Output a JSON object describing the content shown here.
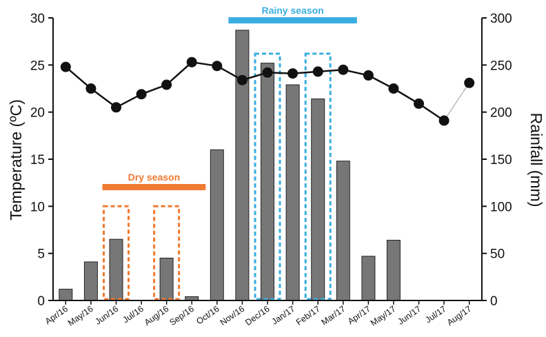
{
  "chart_data": {
    "type": "bar",
    "categories": [
      "Apr/16",
      "May/16",
      "Jun/16",
      "Jul/16",
      "Aug/16",
      "Sep/16",
      "Oct/16",
      "Nov/16",
      "Dec/16",
      "Jan/17",
      "Feb/17",
      "Mar/17",
      "Apr/17",
      "May/17",
      "Jun/17",
      "Jul/17",
      "Aug/17"
    ],
    "series": [
      {
        "type": "bar",
        "axis": "right",
        "values": [
          12,
          41,
          65,
          0,
          45,
          4,
          160,
          287,
          252,
          229,
          214,
          148,
          47,
          64,
          0,
          0,
          0
        ]
      },
      {
        "type": "line",
        "axis": "left",
        "values": [
          24.8,
          22.5,
          20.5,
          21.9,
          22.9,
          25.3,
          24.9,
          23.4,
          24.2,
          24.1,
          24.3,
          24.5,
          23.9,
          22.5,
          20.9,
          19.1,
          23.1
        ]
      }
    ],
    "ylabel_left": "Temperature (ºC)",
    "ylabel_right": "Rainfall (mm)",
    "ylim_left": [
      0,
      30
    ],
    "ylim_right": [
      0,
      300
    ],
    "yticks_left": [
      "0",
      "5",
      "10",
      "15",
      "20",
      "25",
      "30"
    ],
    "yticks_right": [
      "0",
      "50",
      "100",
      "150",
      "200",
      "250",
      "300"
    ],
    "annotations": [
      {
        "label": "Dry season",
        "color": "#f07a30",
        "from": "Jun/16",
        "to": "Sep/16",
        "highlight": [
          "Jun/16",
          "Aug/16"
        ]
      },
      {
        "label": "Rainy season",
        "color": "#3aaee0",
        "from": "Nov/16",
        "to": "Mar/17",
        "highlight": [
          "Dec/16",
          "Feb/17"
        ]
      }
    ],
    "colors": {
      "bar": "#777777",
      "line": "#111111",
      "dry": "#f07a30",
      "rainy": "#3aaee0"
    },
    "grid": false
  }
}
